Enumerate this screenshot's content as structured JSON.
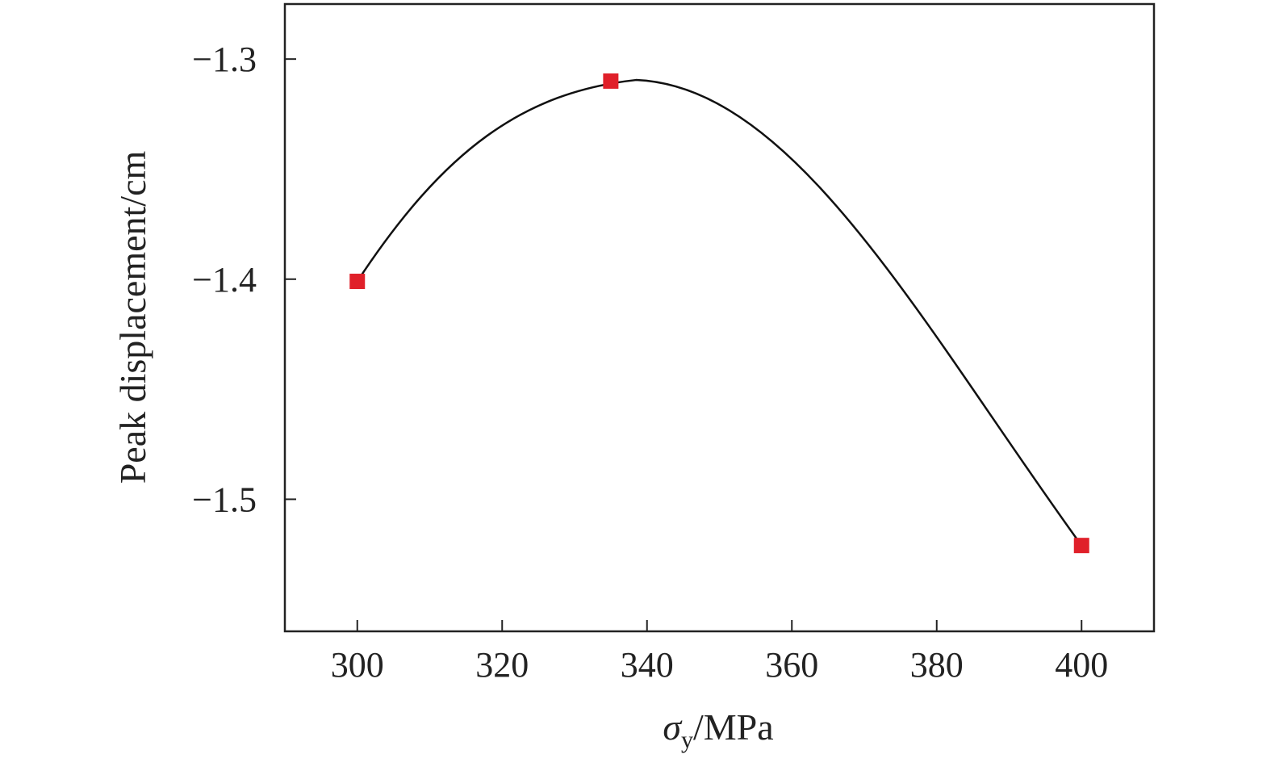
{
  "chart_data": {
    "type": "line",
    "xlabel": {
      "symbol": "σ",
      "subscript": "y",
      "unit": "/MPa"
    },
    "ylabel": "Peak displacement/cm",
    "xlim": [
      290,
      410
    ],
    "ylim": [
      -1.56,
      -1.275
    ],
    "x_ticks": [
      300,
      320,
      340,
      360,
      380,
      400
    ],
    "y_ticks": [
      -1.3,
      -1.4,
      -1.5
    ],
    "x_tick_labels": [
      "300",
      "320",
      "340",
      "360",
      "380",
      "400"
    ],
    "y_tick_labels": [
      "−1.3",
      "−1.4",
      "−1.5"
    ],
    "series": [
      {
        "points": [
          {
            "x": 300,
            "y": -1.401
          },
          {
            "x": 335,
            "y": -1.31
          },
          {
            "x": 400,
            "y": -1.521
          }
        ],
        "marker": "square",
        "marker_color": "#e0202a",
        "line": "smooth-fit",
        "line_color": "#111111"
      }
    ],
    "grid": false,
    "legend": "none"
  }
}
